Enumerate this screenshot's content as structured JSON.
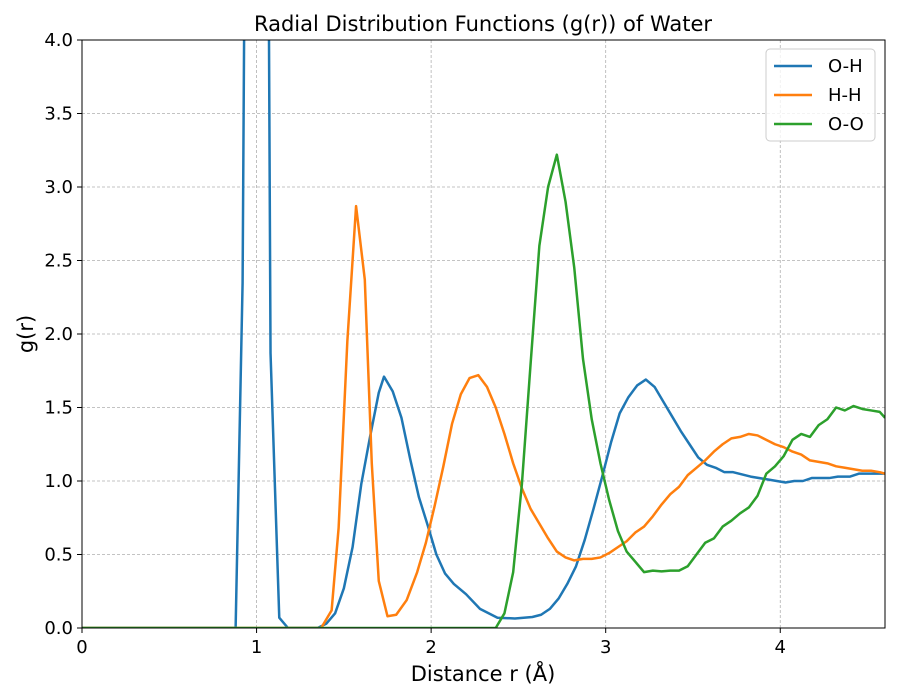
{
  "chart_data": {
    "type": "line",
    "title": "Radial Distribution Functions (g(r)) of Water",
    "xlabel": "Distance r (Å)",
    "ylabel": "g(r)",
    "xlim": [
      0,
      4.6
    ],
    "ylim": [
      0,
      4.0
    ],
    "xticks": [
      0,
      1,
      2,
      3,
      4
    ],
    "xtick_labels": [
      "0",
      "1",
      "2",
      "3",
      "4"
    ],
    "yticks": [
      0,
      0.5,
      1.0,
      1.5,
      2.0,
      2.5,
      3.0,
      3.5,
      4.0
    ],
    "ytick_labels": [
      "0.0",
      "0.5",
      "1.0",
      "1.5",
      "2.0",
      "2.5",
      "3.0",
      "3.5",
      "4.0"
    ],
    "grid": true,
    "legend_position": "top-right",
    "series": [
      {
        "name": "O-H",
        "color": "#1f77b4",
        "points": [
          [
            0,
            0
          ],
          [
            0.88,
            0
          ],
          [
            0.92,
            2.35
          ],
          [
            0.93,
            4.3
          ],
          [
            1.07,
            4.3
          ],
          [
            1.08,
            1.87
          ],
          [
            1.13,
            0.07
          ],
          [
            1.18,
            0.0
          ],
          [
            1.35,
            0.0
          ],
          [
            1.4,
            0.03
          ],
          [
            1.45,
            0.1
          ],
          [
            1.5,
            0.27
          ],
          [
            1.55,
            0.55
          ],
          [
            1.6,
            0.98
          ],
          [
            1.65,
            1.3
          ],
          [
            1.7,
            1.6
          ],
          [
            1.73,
            1.71
          ],
          [
            1.78,
            1.61
          ],
          [
            1.83,
            1.43
          ],
          [
            1.88,
            1.15
          ],
          [
            1.93,
            0.89
          ],
          [
            1.98,
            0.7
          ],
          [
            2.03,
            0.5
          ],
          [
            2.08,
            0.37
          ],
          [
            2.13,
            0.3
          ],
          [
            2.2,
            0.23
          ],
          [
            2.28,
            0.13
          ],
          [
            2.38,
            0.07
          ],
          [
            2.48,
            0.065
          ],
          [
            2.58,
            0.075
          ],
          [
            2.63,
            0.09
          ],
          [
            2.68,
            0.13
          ],
          [
            2.73,
            0.2
          ],
          [
            2.78,
            0.3
          ],
          [
            2.83,
            0.42
          ],
          [
            2.88,
            0.6
          ],
          [
            2.93,
            0.81
          ],
          [
            2.98,
            1.03
          ],
          [
            3.03,
            1.26
          ],
          [
            3.08,
            1.46
          ],
          [
            3.13,
            1.57
          ],
          [
            3.18,
            1.65
          ],
          [
            3.23,
            1.69
          ],
          [
            3.28,
            1.64
          ],
          [
            3.33,
            1.54
          ],
          [
            3.38,
            1.44
          ],
          [
            3.43,
            1.34
          ],
          [
            3.48,
            1.25
          ],
          [
            3.53,
            1.16
          ],
          [
            3.58,
            1.11
          ],
          [
            3.63,
            1.09
          ],
          [
            3.68,
            1.06
          ],
          [
            3.73,
            1.06
          ],
          [
            3.83,
            1.03
          ],
          [
            3.93,
            1.01
          ],
          [
            4.03,
            0.99
          ],
          [
            4.08,
            1.0
          ],
          [
            4.13,
            1.0
          ],
          [
            4.18,
            1.02
          ],
          [
            4.28,
            1.02
          ],
          [
            4.33,
            1.03
          ],
          [
            4.4,
            1.03
          ],
          [
            4.45,
            1.05
          ],
          [
            4.6,
            1.05
          ]
        ]
      },
      {
        "name": "H-H",
        "color": "#ff7f0e",
        "points": [
          [
            0,
            0
          ],
          [
            1.37,
            0
          ],
          [
            1.43,
            0.12
          ],
          [
            1.47,
            0.68
          ],
          [
            1.52,
            1.95
          ],
          [
            1.57,
            2.87
          ],
          [
            1.62,
            2.37
          ],
          [
            1.66,
            1.12
          ],
          [
            1.7,
            0.32
          ],
          [
            1.75,
            0.08
          ],
          [
            1.8,
            0.09
          ],
          [
            1.86,
            0.19
          ],
          [
            1.92,
            0.38
          ],
          [
            1.97,
            0.58
          ],
          [
            2.02,
            0.83
          ],
          [
            2.07,
            1.1
          ],
          [
            2.12,
            1.39
          ],
          [
            2.17,
            1.59
          ],
          [
            2.22,
            1.7
          ],
          [
            2.27,
            1.72
          ],
          [
            2.32,
            1.64
          ],
          [
            2.37,
            1.5
          ],
          [
            2.42,
            1.32
          ],
          [
            2.47,
            1.12
          ],
          [
            2.52,
            0.95
          ],
          [
            2.57,
            0.81
          ],
          [
            2.62,
            0.71
          ],
          [
            2.67,
            0.61
          ],
          [
            2.72,
            0.52
          ],
          [
            2.77,
            0.48
          ],
          [
            2.82,
            0.46
          ],
          [
            2.87,
            0.47
          ],
          [
            2.92,
            0.47
          ],
          [
            2.97,
            0.48
          ],
          [
            3.02,
            0.51
          ],
          [
            3.07,
            0.55
          ],
          [
            3.12,
            0.59
          ],
          [
            3.17,
            0.65
          ],
          [
            3.22,
            0.69
          ],
          [
            3.27,
            0.76
          ],
          [
            3.32,
            0.84
          ],
          [
            3.37,
            0.91
          ],
          [
            3.42,
            0.96
          ],
          [
            3.47,
            1.04
          ],
          [
            3.52,
            1.09
          ],
          [
            3.57,
            1.14
          ],
          [
            3.62,
            1.2
          ],
          [
            3.67,
            1.25
          ],
          [
            3.72,
            1.29
          ],
          [
            3.77,
            1.3
          ],
          [
            3.82,
            1.32
          ],
          [
            3.87,
            1.31
          ],
          [
            3.92,
            1.28
          ],
          [
            3.97,
            1.25
          ],
          [
            4.02,
            1.23
          ],
          [
            4.07,
            1.2
          ],
          [
            4.12,
            1.18
          ],
          [
            4.17,
            1.14
          ],
          [
            4.22,
            1.13
          ],
          [
            4.27,
            1.12
          ],
          [
            4.32,
            1.1
          ],
          [
            4.37,
            1.09
          ],
          [
            4.42,
            1.08
          ],
          [
            4.47,
            1.07
          ],
          [
            4.52,
            1.07
          ],
          [
            4.57,
            1.06
          ],
          [
            4.6,
            1.05
          ]
        ]
      },
      {
        "name": "O-O",
        "color": "#2ca02c",
        "points": [
          [
            0,
            0
          ],
          [
            2.37,
            0
          ],
          [
            2.42,
            0.1
          ],
          [
            2.47,
            0.38
          ],
          [
            2.52,
            0.98
          ],
          [
            2.57,
            1.8
          ],
          [
            2.62,
            2.6
          ],
          [
            2.67,
            3.0
          ],
          [
            2.72,
            3.22
          ],
          [
            2.77,
            2.9
          ],
          [
            2.82,
            2.45
          ],
          [
            2.87,
            1.83
          ],
          [
            2.92,
            1.42
          ],
          [
            2.97,
            1.12
          ],
          [
            3.02,
            0.87
          ],
          [
            3.07,
            0.66
          ],
          [
            3.12,
            0.52
          ],
          [
            3.17,
            0.45
          ],
          [
            3.22,
            0.38
          ],
          [
            3.27,
            0.39
          ],
          [
            3.32,
            0.385
          ],
          [
            3.37,
            0.39
          ],
          [
            3.42,
            0.39
          ],
          [
            3.47,
            0.42
          ],
          [
            3.52,
            0.5
          ],
          [
            3.57,
            0.58
          ],
          [
            3.62,
            0.61
          ],
          [
            3.67,
            0.69
          ],
          [
            3.72,
            0.73
          ],
          [
            3.77,
            0.78
          ],
          [
            3.82,
            0.82
          ],
          [
            3.87,
            0.9
          ],
          [
            3.92,
            1.05
          ],
          [
            3.97,
            1.1
          ],
          [
            4.02,
            1.17
          ],
          [
            4.07,
            1.28
          ],
          [
            4.12,
            1.32
          ],
          [
            4.17,
            1.3
          ],
          [
            4.22,
            1.38
          ],
          [
            4.27,
            1.42
          ],
          [
            4.32,
            1.5
          ],
          [
            4.37,
            1.48
          ],
          [
            4.42,
            1.51
          ],
          [
            4.47,
            1.49
          ],
          [
            4.52,
            1.48
          ],
          [
            4.57,
            1.47
          ],
          [
            4.6,
            1.43
          ]
        ]
      }
    ]
  }
}
